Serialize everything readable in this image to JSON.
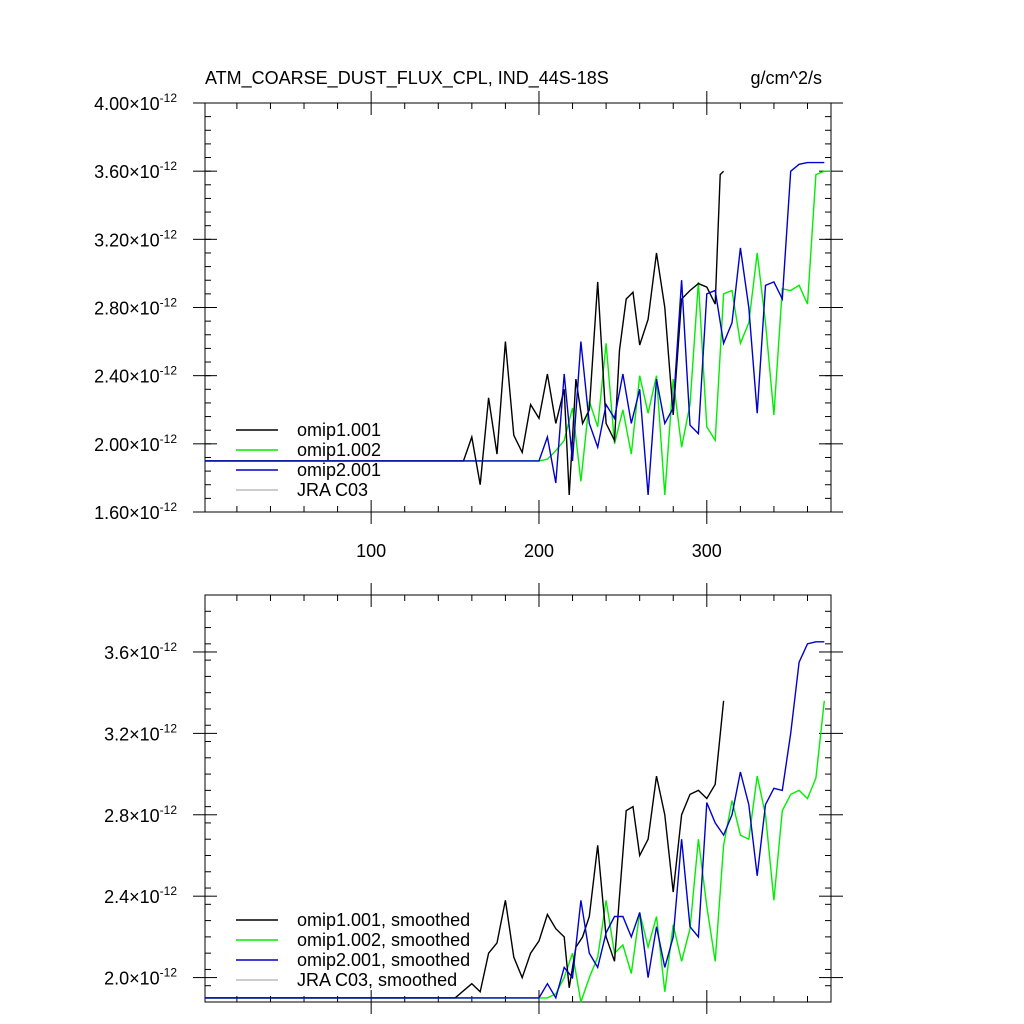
{
  "chart_data": [
    {
      "type": "line",
      "title": "ATM_COARSE_DUST_FLUX_CPL, IND_44S-18S",
      "units": "g/cm^2/s",
      "xlim": [
        1,
        374
      ],
      "ylim": [
        1.6,
        4.0
      ],
      "exponent": "-12",
      "x_ticks": [
        100,
        200,
        300
      ],
      "y_ticks": [
        1.6,
        2.0,
        2.4,
        2.8,
        3.2,
        3.6,
        4.0
      ],
      "y_tick_labels": [
        "1.60",
        "2.00",
        "2.40",
        "2.80",
        "3.20",
        "3.60",
        "4.00"
      ],
      "legend_position": "bottom-left",
      "series": [
        {
          "name": "omip1.001",
          "color": "#000000",
          "x": [
            1,
            155,
            160,
            165,
            170,
            175,
            180,
            185,
            190,
            195,
            200,
            205,
            210,
            215,
            218,
            222,
            226,
            230,
            235,
            240,
            245,
            248,
            252,
            256,
            260,
            265,
            270,
            275,
            280,
            285,
            290,
            295,
            300,
            305,
            308,
            310
          ],
          "y": [
            1.9,
            1.9,
            2.04,
            1.76,
            2.27,
            1.94,
            2.6,
            2.05,
            1.95,
            2.23,
            2.15,
            2.41,
            2.12,
            2.32,
            1.7,
            2.38,
            2.12,
            2.2,
            2.95,
            2.12,
            2.02,
            2.55,
            2.85,
            2.89,
            2.58,
            2.73,
            3.12,
            2.8,
            2.17,
            2.85,
            2.9,
            2.94,
            2.92,
            2.82,
            3.58,
            3.6
          ]
        },
        {
          "name": "omip1.002",
          "color": "#00ee00",
          "x": [
            1,
            200,
            205,
            210,
            215,
            220,
            225,
            230,
            235,
            240,
            245,
            250,
            255,
            260,
            265,
            270,
            275,
            280,
            285,
            290,
            295,
            300,
            305,
            310,
            315,
            320,
            325,
            330,
            335,
            340,
            345,
            350,
            355,
            360,
            365,
            370,
            374
          ],
          "y": [
            1.9,
            1.9,
            1.91,
            1.96,
            2.02,
            2.21,
            1.78,
            2.25,
            2.1,
            2.59,
            2.0,
            2.2,
            1.94,
            2.4,
            2.18,
            2.4,
            1.7,
            2.38,
            1.98,
            2.23,
            2.95,
            2.1,
            2.02,
            2.88,
            2.9,
            2.59,
            2.71,
            3.12,
            2.71,
            2.17,
            2.91,
            2.9,
            2.93,
            2.82,
            3.58,
            3.6,
            3.6
          ]
        },
        {
          "name": "omip2.001",
          "color": "#0000cc",
          "x": [
            1,
            200,
            205,
            210,
            215,
            220,
            225,
            230,
            235,
            240,
            245,
            250,
            255,
            260,
            265,
            270,
            275,
            280,
            285,
            290,
            295,
            300,
            305,
            310,
            315,
            320,
            325,
            330,
            335,
            340,
            345,
            350,
            355,
            360,
            365,
            370
          ],
          "y": [
            1.9,
            1.9,
            2.04,
            1.77,
            2.41,
            1.9,
            2.6,
            2.12,
            1.98,
            2.23,
            2.15,
            2.41,
            2.12,
            2.32,
            1.7,
            2.38,
            2.12,
            2.21,
            2.96,
            2.11,
            2.06,
            2.88,
            2.9,
            2.59,
            2.71,
            3.15,
            2.8,
            2.18,
            2.93,
            2.95,
            2.85,
            3.6,
            3.64,
            3.65,
            3.65,
            3.65
          ]
        },
        {
          "name": "JRA C03",
          "color": "#bbbbbb",
          "x": [],
          "y": []
        }
      ]
    },
    {
      "type": "line",
      "xlim": [
        1,
        374
      ],
      "ylim": [
        1.88,
        3.88
      ],
      "exponent": "-12",
      "x_ticks": [
        100,
        200,
        300
      ],
      "y_ticks": [
        2.0,
        2.4,
        2.8,
        3.2,
        3.6
      ],
      "y_tick_labels": [
        "2.0",
        "2.4",
        "2.8",
        "3.2",
        "3.6"
      ],
      "legend_position": "bottom-left",
      "series": [
        {
          "name": "omip1.001, smoothed",
          "color": "#000000",
          "x": [
            1,
            150,
            160,
            165,
            170,
            175,
            180,
            185,
            190,
            195,
            200,
            205,
            210,
            215,
            218,
            222,
            226,
            230,
            235,
            240,
            245,
            248,
            252,
            256,
            260,
            265,
            270,
            275,
            280,
            285,
            290,
            295,
            300,
            305,
            310
          ],
          "y": [
            1.9,
            1.9,
            1.97,
            1.93,
            2.12,
            2.17,
            2.38,
            2.1,
            2.0,
            2.12,
            2.18,
            2.31,
            2.24,
            2.2,
            1.95,
            2.15,
            2.2,
            2.3,
            2.65,
            2.2,
            2.08,
            2.4,
            2.82,
            2.84,
            2.6,
            2.68,
            2.99,
            2.8,
            2.42,
            2.8,
            2.9,
            2.92,
            2.88,
            2.95,
            3.36
          ]
        },
        {
          "name": "omip1.002, smoothed",
          "color": "#00ee00",
          "x": [
            1,
            200,
            205,
            210,
            215,
            220,
            225,
            230,
            235,
            240,
            245,
            250,
            255,
            260,
            265,
            270,
            275,
            280,
            285,
            290,
            295,
            300,
            305,
            310,
            315,
            320,
            325,
            330,
            335,
            340,
            345,
            350,
            355,
            360,
            365,
            370
          ],
          "y": [
            1.9,
            1.9,
            1.9,
            1.92,
            2.0,
            2.12,
            1.88,
            2.0,
            2.1,
            2.38,
            2.12,
            2.16,
            2.02,
            2.32,
            2.15,
            2.3,
            1.93,
            2.26,
            2.08,
            2.24,
            2.68,
            2.35,
            2.08,
            2.65,
            2.87,
            2.7,
            2.68,
            2.99,
            2.8,
            2.38,
            2.82,
            2.9,
            2.92,
            2.88,
            2.98,
            3.36
          ]
        },
        {
          "name": "omip2.001, smoothed",
          "color": "#0000cc",
          "x": [
            1,
            200,
            205,
            210,
            215,
            220,
            225,
            230,
            235,
            240,
            245,
            250,
            255,
            260,
            265,
            270,
            275,
            280,
            285,
            290,
            295,
            300,
            305,
            310,
            315,
            320,
            325,
            330,
            335,
            340,
            345,
            350,
            355,
            360,
            365,
            370
          ],
          "y": [
            1.9,
            1.9,
            1.97,
            1.9,
            2.05,
            2.0,
            2.38,
            2.12,
            2.05,
            2.22,
            2.3,
            2.3,
            2.2,
            2.32,
            2.0,
            2.25,
            2.05,
            2.2,
            2.68,
            2.25,
            2.2,
            2.86,
            2.76,
            2.7,
            2.8,
            3.01,
            2.85,
            2.5,
            2.85,
            2.93,
            2.92,
            3.2,
            3.55,
            3.64,
            3.65,
            3.65
          ]
        },
        {
          "name": "JRA C03, smoothed",
          "color": "#bbbbbb",
          "x": [],
          "y": []
        }
      ]
    }
  ]
}
